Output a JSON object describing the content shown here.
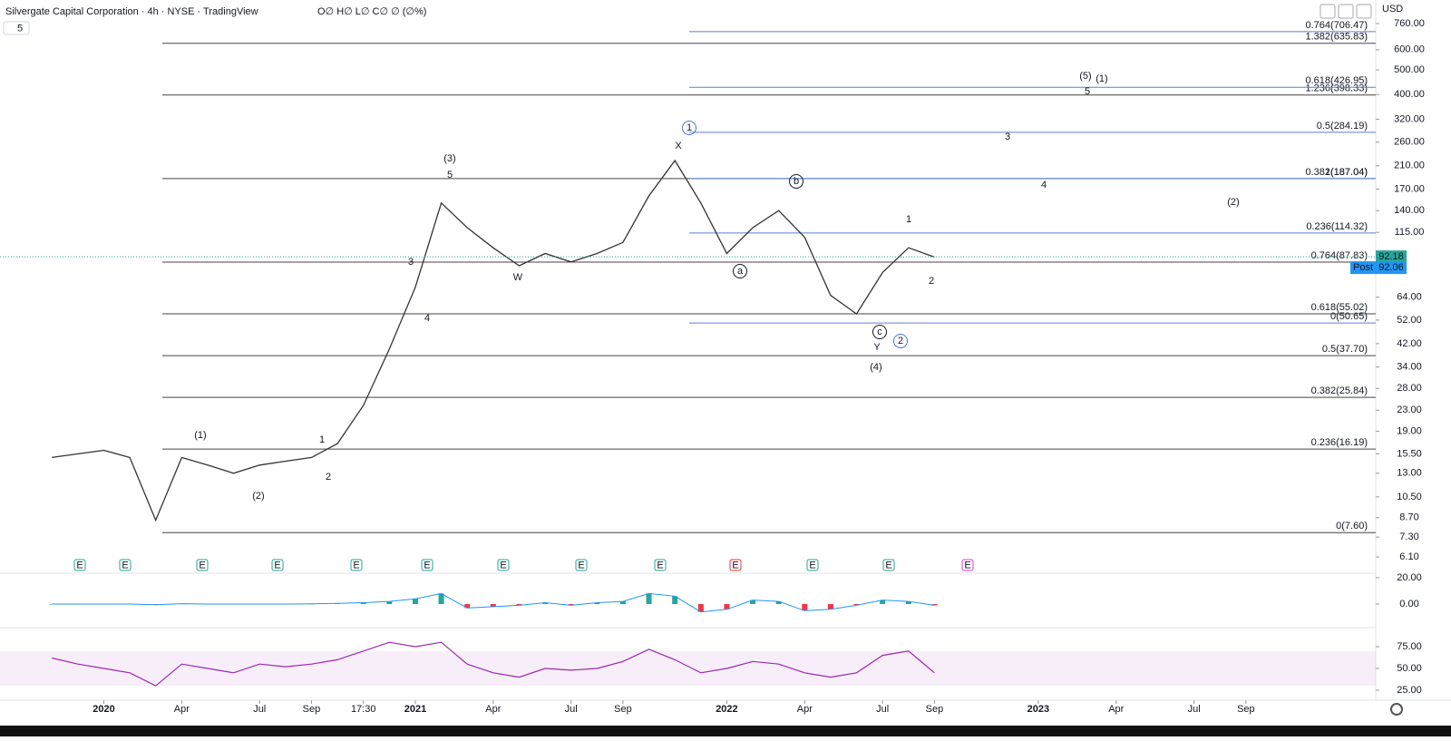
{
  "header": {
    "title": "Silvergate Capital Corporation · 4h · NYSE · TradingView",
    "ohlc": "O∅ H∅ L∅ C∅ ∅ (∅%)",
    "indicator_count": "5",
    "currency": "USD"
  },
  "chart_data": {
    "type": "line",
    "log_scale": true,
    "color": "#333333",
    "x": [
      "2019-11",
      "2019-12",
      "2020-01",
      "2020-02",
      "2020-03",
      "2020-04",
      "2020-05",
      "2020-06",
      "2020-07",
      "2020-08",
      "2020-09",
      "2020-10",
      "2020-11",
      "2020-12",
      "2021-01",
      "2021-02",
      "2021-03",
      "2021-04",
      "2021-05",
      "2021-06",
      "2021-07",
      "2021-08",
      "2021-09",
      "2021-10",
      "2021-11",
      "2021-12",
      "2022-01",
      "2022-02",
      "2022-03",
      "2022-04",
      "2022-05",
      "2022-06",
      "2022-07",
      "2022-08",
      "2022-09"
    ],
    "values": [
      15,
      15.5,
      16,
      15,
      8.5,
      15,
      14,
      13,
      14,
      14.5,
      15,
      17,
      24,
      40,
      70,
      150,
      120,
      100,
      85,
      95,
      88,
      95,
      105,
      160,
      220,
      150,
      95,
      120,
      140,
      110,
      65,
      55,
      80,
      100,
      92
    ],
    "xlim": [
      "2019-09",
      "2024-02"
    ],
    "xticks": [
      {
        "value": "2020-01",
        "label": "2020"
      },
      {
        "value": "2020-04",
        "label": "Apr"
      },
      {
        "value": "2020-07",
        "label": "Jul"
      },
      {
        "value": "2020-09",
        "label": "Sep"
      },
      {
        "value": "2020-11",
        "label": "17:30"
      },
      {
        "value": "2021-01",
        "label": "2021"
      },
      {
        "value": "2021-04",
        "label": "Apr"
      },
      {
        "value": "2021-07",
        "label": "Jul"
      },
      {
        "value": "2021-09",
        "label": "Sep"
      },
      {
        "value": "2022-01",
        "label": "2022"
      },
      {
        "value": "2022-04",
        "label": "Apr"
      },
      {
        "value": "2022-07",
        "label": "Jul"
      },
      {
        "value": "2022-09",
        "label": "Sep"
      },
      {
        "value": "2023-01",
        "label": "2023"
      },
      {
        "value": "2023-04",
        "label": "Apr"
      },
      {
        "value": "2023-07",
        "label": "Jul"
      },
      {
        "value": "2023-09",
        "label": "Sep"
      }
    ],
    "ylim": [
      4.93,
      941
    ],
    "yticks": [
      {
        "value": 760,
        "label": "760.00"
      },
      {
        "value": 600,
        "label": "600.00"
      },
      {
        "value": 500,
        "label": "500.00"
      },
      {
        "value": 400,
        "label": "400.00"
      },
      {
        "value": 320,
        "label": "320.00"
      },
      {
        "value": 260,
        "label": "260.00"
      },
      {
        "value": 210,
        "label": "210.00"
      },
      {
        "value": 170,
        "label": "170.00"
      },
      {
        "value": 140,
        "label": "140.00"
      },
      {
        "value": 115,
        "label": "115.00"
      },
      {
        "value": 64,
        "label": "64.00"
      },
      {
        "value": 52,
        "label": "52.00"
      },
      {
        "value": 42,
        "label": "42.00"
      },
      {
        "value": 34,
        "label": "34.00"
      },
      {
        "value": 28,
        "label": "28.00"
      },
      {
        "value": 23,
        "label": "23.00"
      },
      {
        "value": 19,
        "label": "19.00"
      },
      {
        "value": 15.5,
        "label": "15.50"
      },
      {
        "value": 13,
        "label": "13.00"
      },
      {
        "value": 10.5,
        "label": "10.50"
      },
      {
        "value": 8.7,
        "label": "8.70"
      },
      {
        "value": 7.3,
        "label": "7.30"
      },
      {
        "value": 6.1,
        "label": "6.10"
      }
    ],
    "last_price": {
      "value": 92.18,
      "label": "92.18"
    },
    "post_price": {
      "tag": "Post",
      "value": 92.06,
      "label": "92.06"
    },
    "fib_black": [
      {
        "value": 635.83,
        "label": "1.382(635.83)"
      },
      {
        "value": 398.33,
        "label": "1.236(398.33)"
      },
      {
        "value": 187.04,
        "label": "1(187.04)"
      },
      {
        "value": 87.83,
        "label": "0.764(87.83)"
      },
      {
        "value": 55.02,
        "label": "0.618(55.02)"
      },
      {
        "value": 37.7,
        "label": "0.5(37.70)"
      },
      {
        "value": 25.84,
        "label": "0.382(25.84)"
      },
      {
        "value": 16.19,
        "label": "0.236(16.19)"
      },
      {
        "value": 7.6,
        "label": "0(7.60)"
      }
    ],
    "fib_blue": [
      {
        "value": 706.47,
        "label": "0.764(706.47)"
      },
      {
        "value": 426.95,
        "label": "0.618(426.95)"
      },
      {
        "value": 284.19,
        "label": "0.5(284.19)"
      },
      {
        "value": 187.04,
        "label": "0.382(187.04)"
      },
      {
        "value": 114.32,
        "label": "0.236(114.32)"
      },
      {
        "value": 50.65,
        "label": "0(50.65)"
      }
    ],
    "wave_labels": [
      "(1)",
      "(2)",
      "1",
      "2",
      "3",
      "4",
      "(3)",
      "5",
      "W",
      "X",
      "a",
      "b",
      "c",
      "Y",
      "(4)",
      "1",
      "2",
      "3",
      "4",
      "(5)",
      "5",
      "(1)",
      "(2)",
      "1",
      "2"
    ],
    "earnings": [
      "E",
      "E",
      "E",
      "E",
      "E",
      "E",
      "E",
      "E",
      "E",
      "E",
      "E",
      "E",
      "E"
    ],
    "macd": {
      "values": [
        0,
        0,
        0,
        0,
        -0.5,
        0.3,
        0,
        0,
        0,
        0,
        0.2,
        0.5,
        1,
        2,
        4,
        8,
        -3,
        -2,
        -1,
        1,
        -1,
        1,
        2,
        8,
        6,
        -6,
        -4,
        3,
        2,
        -5,
        -4,
        -1,
        3,
        2,
        -1
      ],
      "ylim": [
        -17.9,
        23.4
      ],
      "yticks": [
        {
          "value": 20,
          "label": "20.00"
        },
        {
          "value": 0,
          "label": "0.00"
        }
      ]
    },
    "rsi": {
      "values": [
        62,
        55,
        50,
        45,
        30,
        55,
        50,
        45,
        55,
        52,
        55,
        60,
        70,
        80,
        75,
        80,
        55,
        45,
        40,
        50,
        48,
        50,
        58,
        72,
        60,
        45,
        50,
        58,
        55,
        45,
        40,
        45,
        65,
        70,
        45
      ],
      "ylim": [
        13.5,
        96.9
      ],
      "band": [
        30,
        70
      ],
      "yticks": [
        {
          "value": 75,
          "label": "75.00"
        },
        {
          "value": 50,
          "label": "50.00"
        },
        {
          "value": 25,
          "label": "25.00"
        }
      ]
    }
  }
}
